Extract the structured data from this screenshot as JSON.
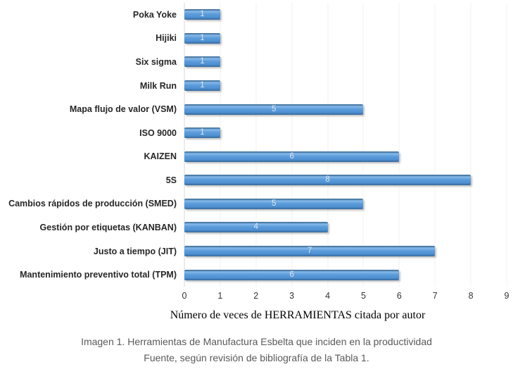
{
  "chart_data": {
    "type": "bar",
    "orientation": "horizontal",
    "categories": [
      "Poka Yoke",
      "Hijiki",
      "Six sigma",
      "Milk Run",
      "Mapa flujo de valor (VSM)",
      "ISO 9000",
      "KAIZEN",
      "5S",
      "Cambios rápidos de producción (SMED)",
      "Gestión por etiquetas (KANBAN)",
      "Justo a tiempo (JIT)",
      "Mantenimiento preventivo total (TPM)"
    ],
    "values": [
      1,
      1,
      1,
      1,
      5,
      1,
      6,
      8,
      5,
      4,
      7,
      6
    ],
    "xlabel": "Número de veces de HERRAMIENTAS citada por autor",
    "ylabel": "",
    "xlim": [
      0,
      9
    ],
    "x_ticks": [
      0,
      1,
      2,
      3,
      4,
      5,
      6,
      7,
      8,
      9
    ],
    "grid": true,
    "legend": "none",
    "bar_color": "#5B9BD9",
    "bar_shadow": true,
    "value_label_color": "#DCE6F1",
    "value_label_position": "center"
  },
  "caption": {
    "line1": "Imagen 1. Herramientas de Manufactura Esbelta que inciden en la productividad",
    "line2": "Fuente, según revisión de bibliografía de la Tabla 1."
  }
}
